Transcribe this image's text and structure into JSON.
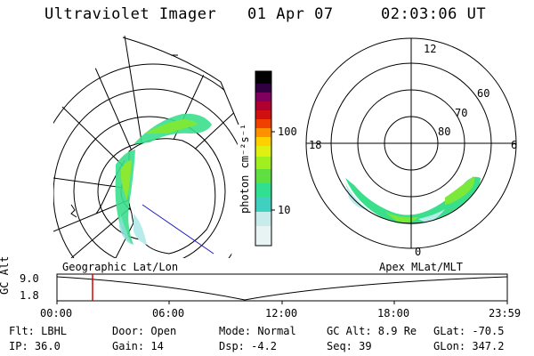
{
  "header": {
    "title": "Ultraviolet Imager",
    "date": "01 Apr 07",
    "time": "02:03:06 UT"
  },
  "left_map": {
    "label": "Geographic Lat/Lon"
  },
  "right_map": {
    "label": "Apex MLat/MLT",
    "mlt_labels": [
      "12",
      "18",
      "6",
      "0"
    ],
    "mlat_labels": [
      "60",
      "70",
      "80"
    ]
  },
  "colorbar": {
    "unit_label": "photon cm⁻²s⁻¹",
    "tick_labels": [
      "100",
      "10"
    ],
    "colors": [
      "#e8f4f4",
      "#c8ecec",
      "#40d0c0",
      "#30e090",
      "#60e040",
      "#a0f020",
      "#e0f010",
      "#ffd000",
      "#ff9000",
      "#f04000",
      "#d01010",
      "#b00030",
      "#800060",
      "#300040",
      "#000000"
    ]
  },
  "altitude_plot": {
    "ylabel": "GC Alt",
    "y_ticks": [
      "9.0",
      "1.8"
    ],
    "x_ticks": [
      "00:00",
      "06:00",
      "12:00",
      "18:00",
      "23:59"
    ],
    "marker_color": "#e00000"
  },
  "info": {
    "flt": "Flt: LBHL",
    "ip": "IP: 36.0",
    "door": "Door: Open",
    "gain": "Gain: 14",
    "mode": "Mode: Normal",
    "dsp": "Dsp:    -4.2",
    "gc_alt": "GC Alt: 8.9 Re",
    "seq": "Seq: 39",
    "glat": "GLat: -70.5",
    "glon": "GLon: 347.2"
  }
}
